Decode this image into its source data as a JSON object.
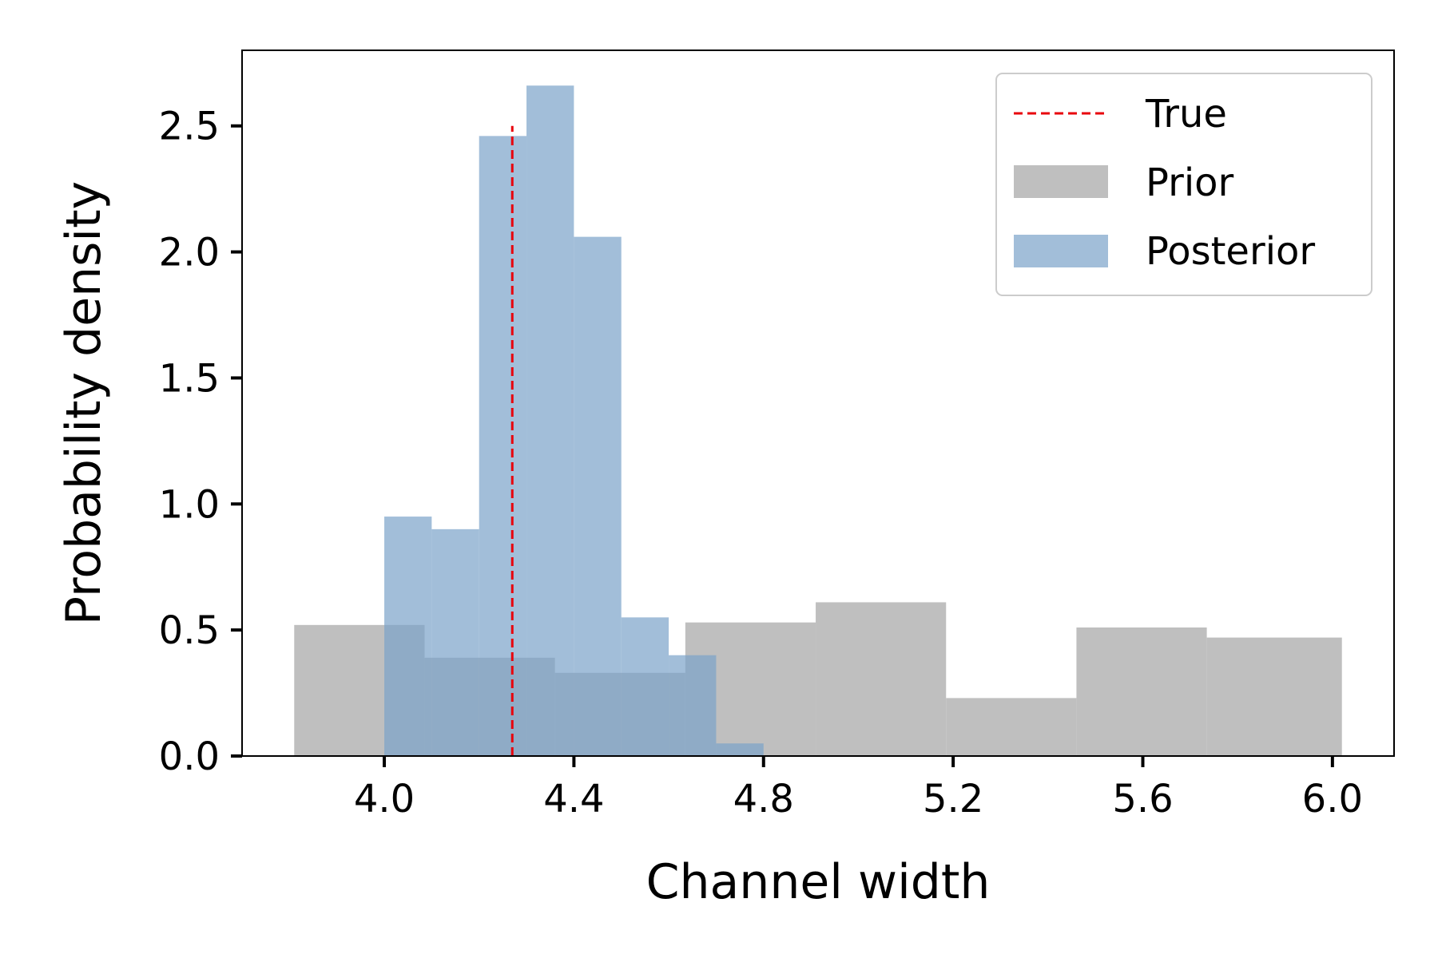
{
  "chart_data": {
    "type": "histogram",
    "title": "",
    "xlabel": "Channel width",
    "ylabel": "Probability density",
    "xlim": [
      3.7,
      6.13
    ],
    "ylim": [
      0,
      2.8
    ],
    "xticks": [
      4.0,
      4.4,
      4.8,
      5.2,
      5.6,
      6.0
    ],
    "xtick_labels": [
      "4.0",
      "4.4",
      "4.8",
      "5.2",
      "5.6",
      "6.0"
    ],
    "yticks": [
      0.0,
      0.5,
      1.0,
      1.5,
      2.0,
      2.5
    ],
    "ytick_labels": [
      "0.0",
      "0.5",
      "1.0",
      "1.5",
      "2.0",
      "2.5"
    ],
    "grid": false,
    "legend_position": "top-right",
    "series": [
      {
        "name": "Prior",
        "kind": "histogram",
        "color": "#bfbfbf",
        "bin_edges": [
          3.81,
          4.085,
          4.36,
          4.635,
          4.91,
          5.185,
          5.46,
          5.735,
          6.02
        ],
        "values": [
          0.52,
          0.39,
          0.33,
          0.53,
          0.61,
          0.23,
          0.51,
          0.47
        ]
      },
      {
        "name": "Posterior",
        "kind": "histogram",
        "color": "#7ba3c9",
        "opacity": 0.7,
        "bin_edges": [
          4.0,
          4.1,
          4.2,
          4.3,
          4.4,
          4.5,
          4.6,
          4.7,
          4.8
        ],
        "values": [
          0.95,
          0.9,
          2.46,
          2.66,
          2.06,
          0.55,
          0.4,
          0.05
        ]
      },
      {
        "name": "True",
        "kind": "vline",
        "color": "#e8000b",
        "style": "dashed",
        "x": 4.27,
        "y_range": [
          0,
          2.5
        ]
      }
    ]
  }
}
